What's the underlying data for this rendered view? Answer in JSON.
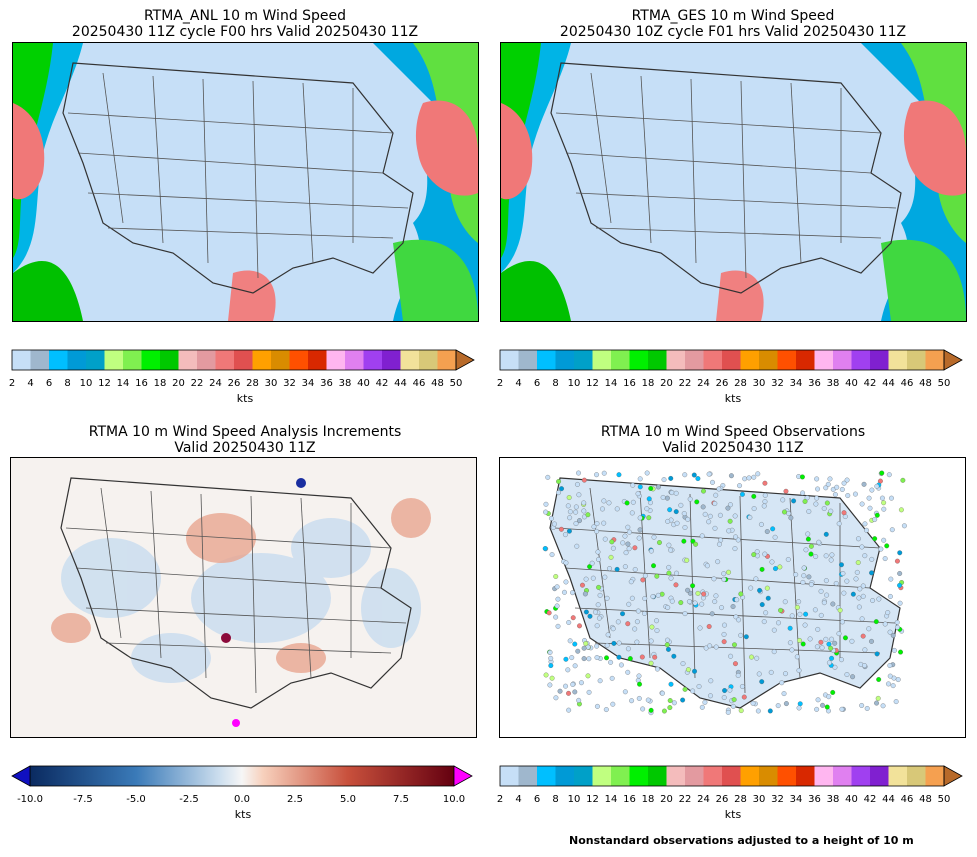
{
  "panels": [
    {
      "title_line1": "RTMA_ANL 10 m Wind Speed",
      "title_line2": "20250430 11Z cycle F00 hrs Valid 20250430 11Z"
    },
    {
      "title_line1": "RTMA_GES 10 m Wind Speed",
      "title_line2": "20250430 10Z cycle F01 hrs Valid 20250430 11Z"
    },
    {
      "title_line1": "RTMA 10 m Wind Speed Analysis Increments",
      "title_line2": "Valid 20250430 11Z"
    },
    {
      "title_line1": "RTMA 10 m Wind Speed Observations",
      "title_line2": "Valid 20250430 11Z"
    }
  ],
  "speed_colorbar": {
    "unit": "kts",
    "ticks": [
      "2",
      "4",
      "6",
      "8",
      "10",
      "12",
      "14",
      "16",
      "18",
      "20",
      "22",
      "24",
      "26",
      "28",
      "30",
      "32",
      "34",
      "36",
      "38",
      "40",
      "42",
      "44",
      "46",
      "48",
      "50"
    ],
    "colors": [
      "#c6dff7",
      "#9fb7cd",
      "#00bfff",
      "#009ad6",
      "#00a0c8",
      "#c0ff80",
      "#80f050",
      "#00f000",
      "#00c800",
      "#f4bcbc",
      "#e39aa0",
      "#f07878",
      "#e05050",
      "#ffa000",
      "#d98c00",
      "#ff5000",
      "#d82800",
      "#ffb6f0",
      "#e080f0",
      "#a040f0",
      "#8020d0",
      "#f2e29a",
      "#d8c878",
      "#f5a050",
      "#d08040"
    ],
    "extend_color": "#b86a2a"
  },
  "increment_colorbar": {
    "unit": "kts",
    "ticks": [
      "-10.0",
      "-7.5",
      "-5.0",
      "-2.5",
      "0.0",
      "2.5",
      "5.0",
      "7.5",
      "10.0"
    ],
    "min_color": "#1010c0",
    "max_color": "#ff00ff"
  },
  "footnote": "Nonstandard observations adjusted to a height of 10 m"
}
